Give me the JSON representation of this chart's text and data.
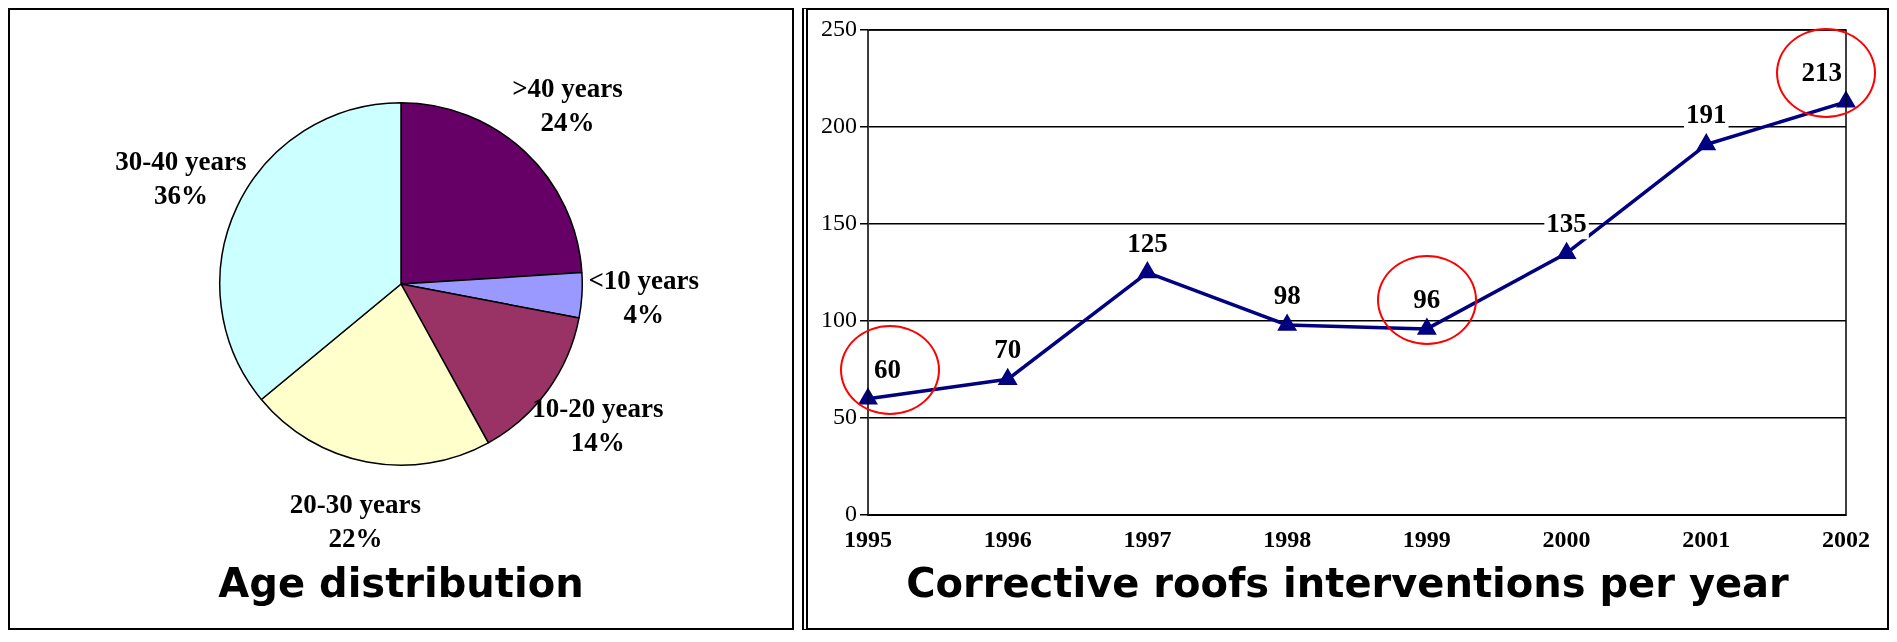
{
  "chart_data": [
    {
      "type": "pie",
      "title": "Age distribution",
      "categories": [
        ">40 years",
        "<10 years",
        "10-20 years",
        "20-30 years",
        "30-40 years"
      ],
      "values": [
        24,
        4,
        14,
        22,
        36
      ],
      "colors": [
        "#660066",
        "#9999ff",
        "#993366",
        "#ffffcc",
        "#ccffff"
      ],
      "value_labels": [
        "24%",
        "4%",
        "14%",
        "22%",
        "36%"
      ],
      "legend": false
    },
    {
      "type": "line",
      "title": "Corrective roofs interventions per year",
      "categories": [
        "1995",
        "1996",
        "1997",
        "1998",
        "1999",
        "2000",
        "2001",
        "2002"
      ],
      "series": [
        {
          "color": "#000080",
          "values": [
            60,
            70,
            125,
            98,
            96,
            135,
            191,
            213
          ]
        }
      ],
      "ylim": [
        0,
        250
      ],
      "yticks": [
        0,
        50,
        100,
        150,
        200,
        250
      ],
      "grid": "y",
      "marker": "triangle",
      "line_style": "solid",
      "data_labels": true,
      "legend": false
    }
  ]
}
